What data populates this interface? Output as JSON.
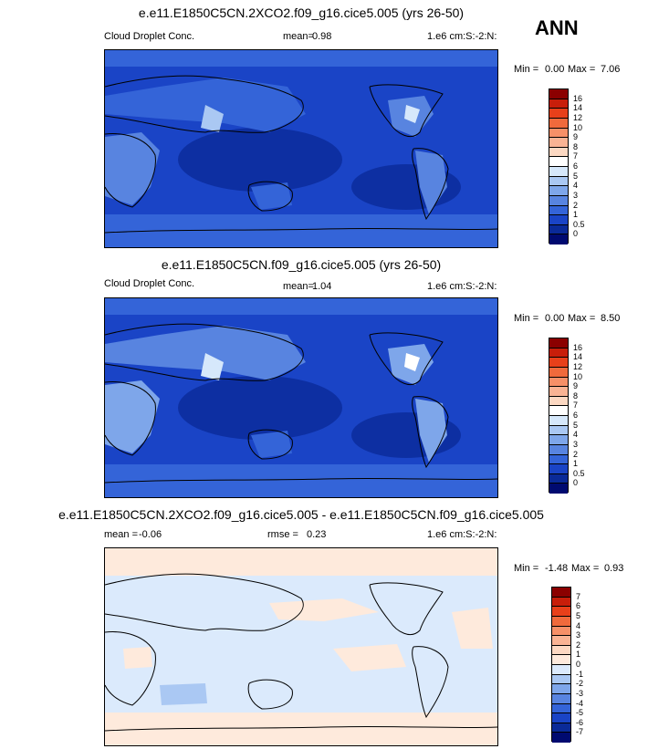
{
  "season": "ANN",
  "panels": [
    {
      "title": "e.e11.E1850C5CN.2XCO2.f09_g16.cice5.005 (yrs 26-50)",
      "left_label": "Cloud Droplet Conc.",
      "mid_label": "mean=",
      "mid_value": "0.98",
      "units": "1.e6 cm:S:-2:N:",
      "min_label": "Min =",
      "min_value": "0.00",
      "max_label": "Max =",
      "max_value": "7.06",
      "colorbar_labels": [
        "16",
        "14",
        "12",
        "10",
        "9",
        "8",
        "7",
        "6",
        "5",
        "4",
        "3",
        "2",
        "1",
        "0.5",
        "0"
      ],
      "colorbar_colors": [
        "#8b0000",
        "#c81e0a",
        "#e8401a",
        "#f06a3c",
        "#f69068",
        "#f9b394",
        "#fcd8c2",
        "#ffffff",
        "#d6e8fb",
        "#aac8f3",
        "#7ea6ea",
        "#5884e0",
        "#3464d8",
        "#1a44c6",
        "#0a2a98",
        "#000a70"
      ]
    },
    {
      "title": "e.e11.E1850C5CN.f09_g16.cice5.005 (yrs 26-50)",
      "left_label": "Cloud Droplet Conc.",
      "mid_label": "mean=",
      "mid_value": "1.04",
      "units": "1.e6 cm:S:-2:N:",
      "min_label": "Min =",
      "min_value": "0.00",
      "max_label": "Max =",
      "max_value": "8.50",
      "colorbar_labels": [
        "16",
        "14",
        "12",
        "10",
        "9",
        "8",
        "7",
        "6",
        "5",
        "4",
        "3",
        "2",
        "1",
        "0.5",
        "0"
      ],
      "colorbar_colors": [
        "#8b0000",
        "#c81e0a",
        "#e8401a",
        "#f06a3c",
        "#f69068",
        "#f9b394",
        "#fcd8c2",
        "#ffffff",
        "#d6e8fb",
        "#aac8f3",
        "#7ea6ea",
        "#5884e0",
        "#3464d8",
        "#1a44c6",
        "#0a2a98",
        "#000a70"
      ]
    },
    {
      "title": "e.e11.E1850C5CN.2XCO2.f09_g16.cice5.005 - e.e11.E1850C5CN.f09_g16.cice5.005",
      "left_label": "mean =",
      "left_value": "-0.06",
      "mid_label": "rmse =",
      "mid_value": "0.23",
      "units": "1.e6 cm:S:-2:N:",
      "min_label": "Min =",
      "min_value": "-1.48",
      "max_label": "Max =",
      "max_value": "0.93",
      "colorbar_labels": [
        "7",
        "6",
        "5",
        "4",
        "3",
        "2",
        "1",
        "0",
        "-1",
        "-2",
        "-3",
        "-4",
        "-5",
        "-6",
        "-7"
      ],
      "colorbar_colors": [
        "#8b0000",
        "#c81e0a",
        "#e8401a",
        "#f06a3c",
        "#f69068",
        "#f9b394",
        "#fcd8c2",
        "#feeadc",
        "#dbeafc",
        "#aac8f3",
        "#7ea6ea",
        "#5884e0",
        "#3464d8",
        "#1a44c6",
        "#0a2a98",
        "#000a70"
      ]
    }
  ],
  "chart_data": [
    {
      "type": "heatmap",
      "title": "e.e11.E1850C5CN.2XCO2.f09_g16.cice5.005 (yrs 26-50)",
      "variable": "Cloud Droplet Conc.",
      "units": "1.e6 cm:S:-2:N:",
      "mean": 0.98,
      "min": 0.0,
      "max": 7.06,
      "contour_levels": [
        0,
        0.5,
        1,
        2,
        3,
        4,
        5,
        6,
        7,
        8,
        9,
        10,
        12,
        14,
        16
      ],
      "season": "ANN"
    },
    {
      "type": "heatmap",
      "title": "e.e11.E1850C5CN.f09_g16.cice5.005 (yrs 26-50)",
      "variable": "Cloud Droplet Conc.",
      "units": "1.e6 cm:S:-2:N:",
      "mean": 1.04,
      "min": 0.0,
      "max": 8.5,
      "contour_levels": [
        0,
        0.5,
        1,
        2,
        3,
        4,
        5,
        6,
        7,
        8,
        9,
        10,
        12,
        14,
        16
      ],
      "season": "ANN"
    },
    {
      "type": "heatmap",
      "title": "e.e11.E1850C5CN.2XCO2.f09_g16.cice5.005 - e.e11.E1850C5CN.f09_g16.cice5.005",
      "units": "1.e6 cm:S:-2:N:",
      "mean": -0.06,
      "rmse": 0.23,
      "min": -1.48,
      "max": 0.93,
      "contour_levels": [
        -7,
        -6,
        -5,
        -4,
        -3,
        -2,
        -1,
        0,
        1,
        2,
        3,
        4,
        5,
        6,
        7
      ],
      "season": "ANN"
    }
  ]
}
